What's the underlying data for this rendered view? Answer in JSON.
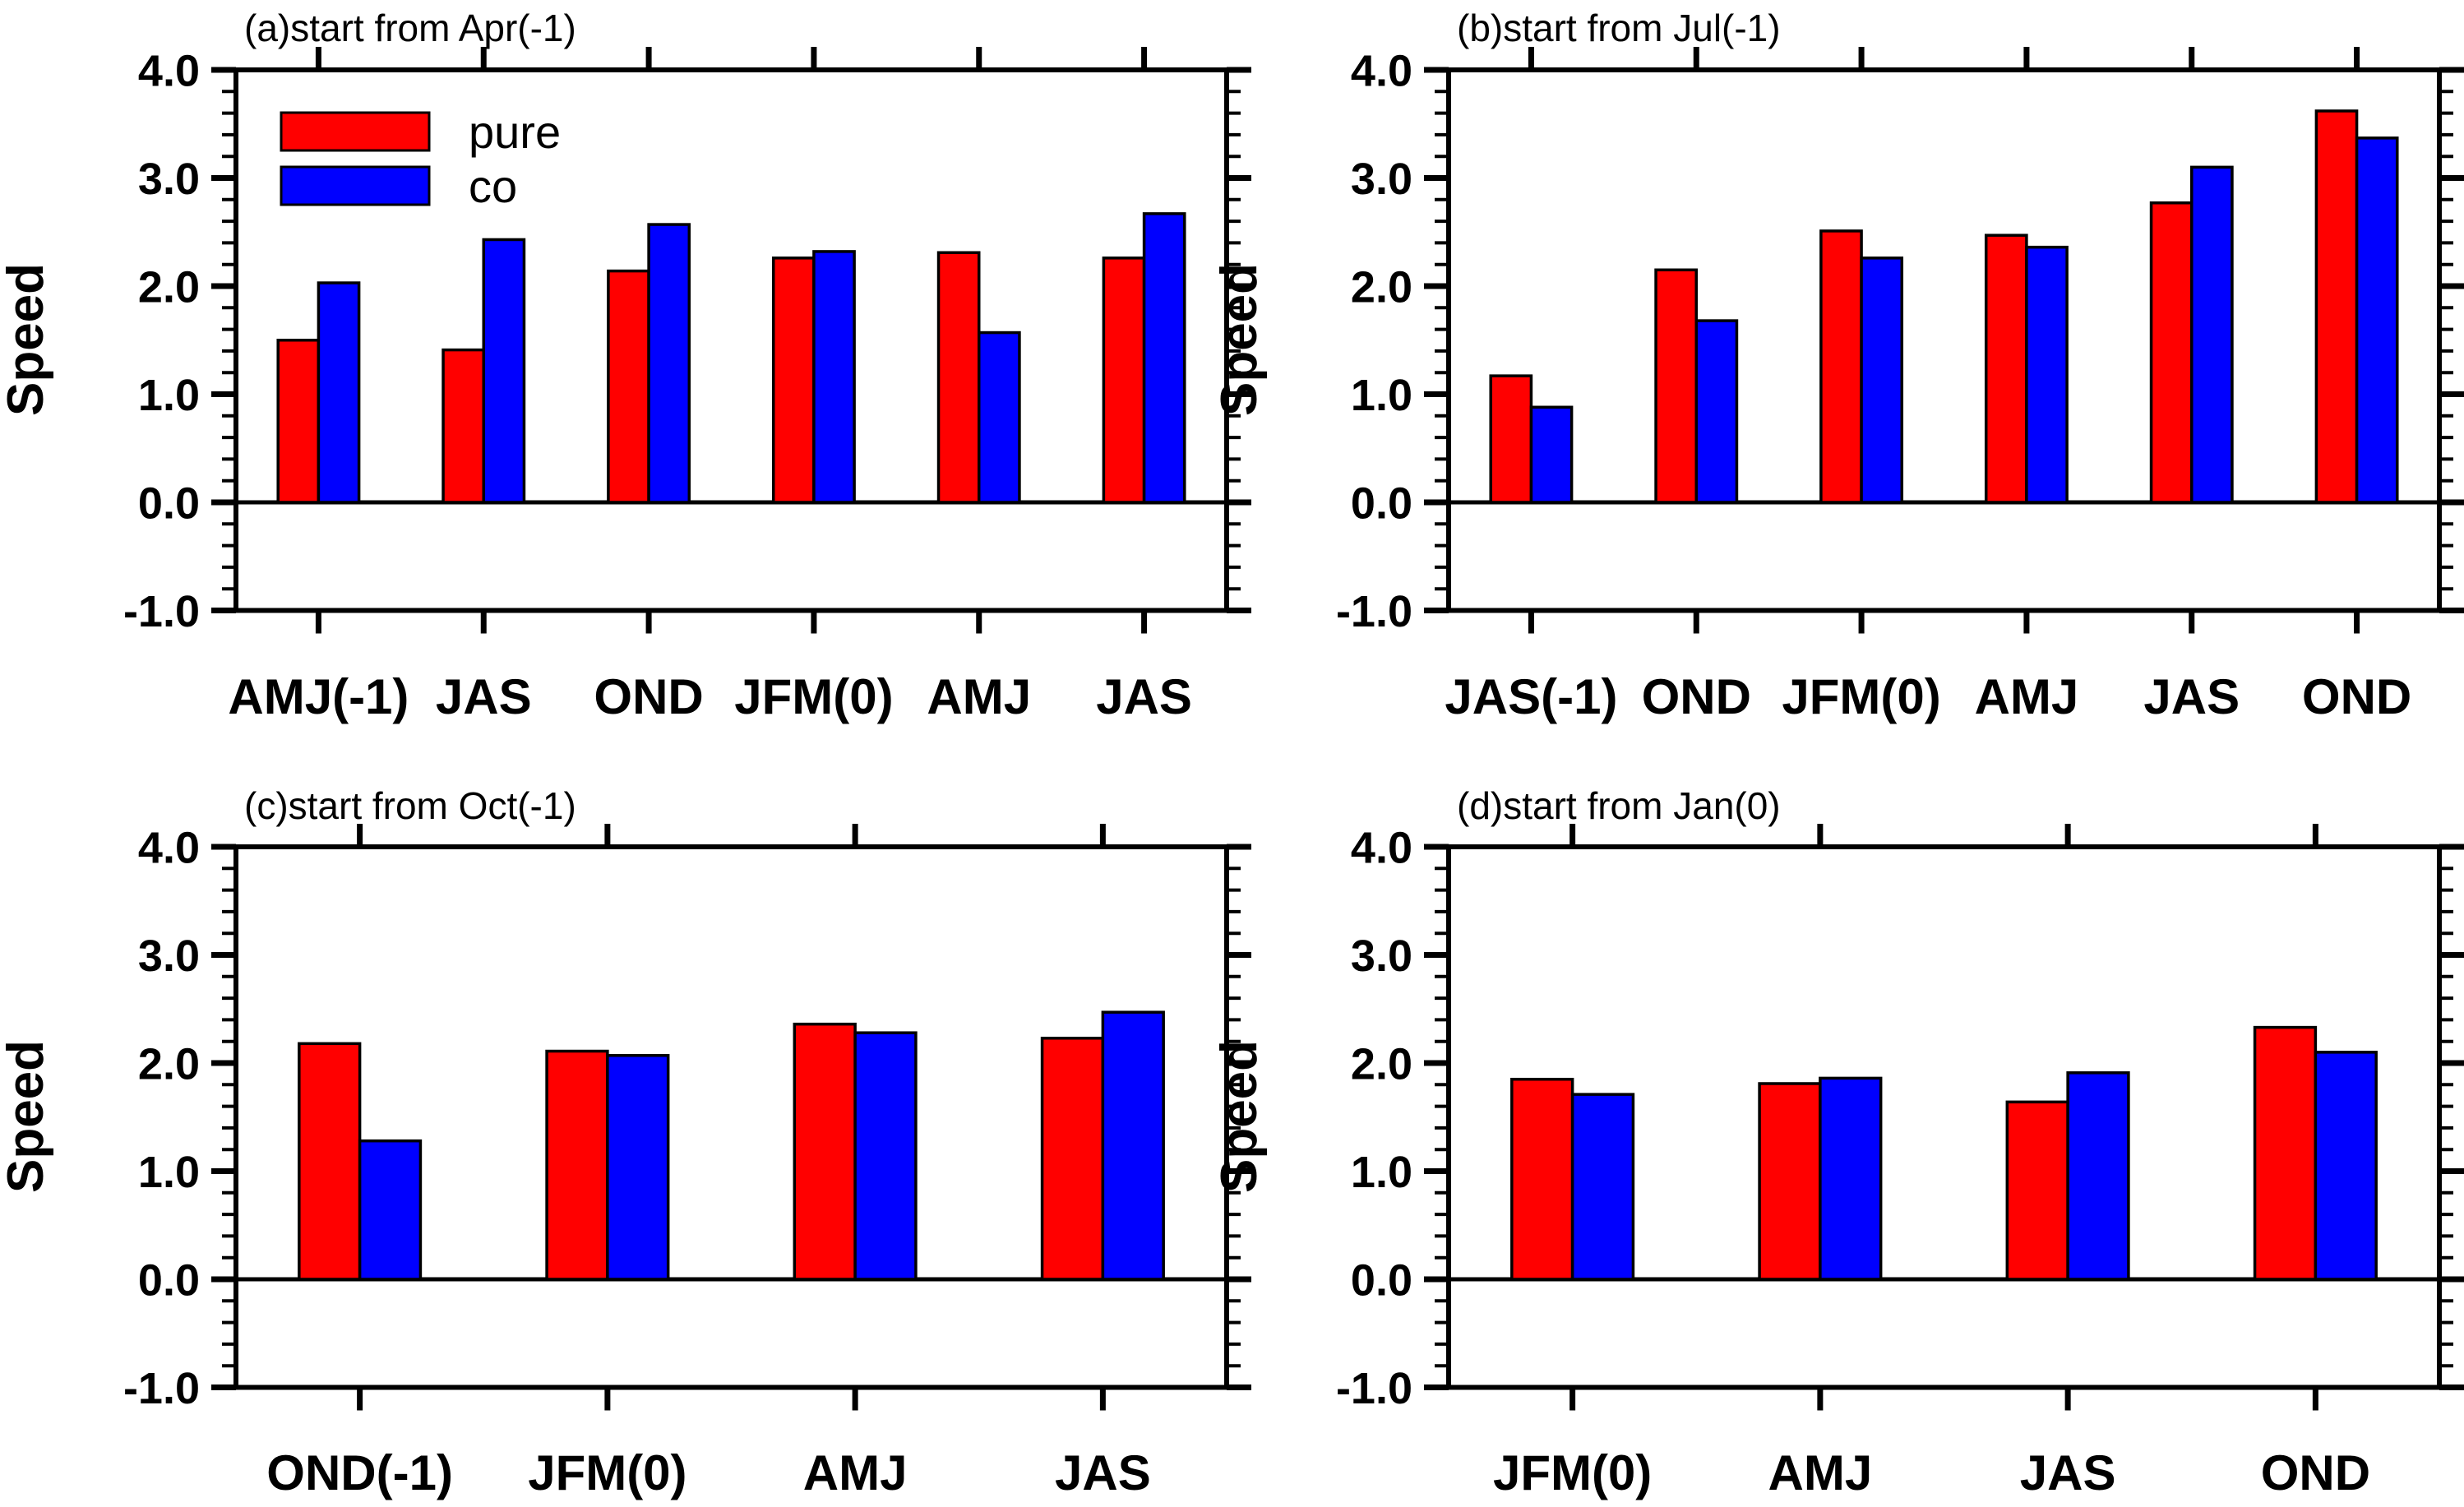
{
  "figure": {
    "background": "#ffffff"
  },
  "axis": {
    "ylabel": "Speed",
    "ylim": [
      -1.0,
      4.0
    ],
    "ymajor": [
      4,
      3,
      2,
      1,
      0,
      -1
    ],
    "ytick_labels": [
      "4.0",
      "3.0",
      "2.0",
      "1.0",
      "0.0",
      "-1.0"
    ],
    "yminor_step": 0.2,
    "grid": "off"
  },
  "legend": {
    "position": "top-left-panel-a",
    "items": [
      {
        "label": "pure",
        "color": "#ff0000"
      },
      {
        "label": "co",
        "color": "#0000ff"
      }
    ]
  },
  "colors": {
    "pure": "#ff0000",
    "co": "#0000ff",
    "outline": "#000000",
    "text": "#000000"
  },
  "chart_data": [
    {
      "type": "bar",
      "id": "a",
      "title": "(a)start from Apr(-1)",
      "ylabel": "Speed",
      "ylim": [
        -1.0,
        4.0
      ],
      "legend_position": "upper-left",
      "show_legend": true,
      "categories": [
        "AMJ(-1)",
        "JAS",
        "OND",
        "JFM(0)",
        "AMJ",
        "JAS"
      ],
      "series": [
        {
          "name": "pure",
          "color": "#ff0000",
          "values": [
            1.5,
            1.41,
            2.14,
            2.26,
            2.31,
            2.26
          ]
        },
        {
          "name": "co",
          "color": "#0000ff",
          "values": [
            2.03,
            2.43,
            2.57,
            2.32,
            1.57,
            2.67
          ]
        }
      ]
    },
    {
      "type": "bar",
      "id": "b",
      "title": "(b)start from Jul(-1)",
      "ylabel": "Speed",
      "ylim": [
        -1.0,
        4.0
      ],
      "show_legend": false,
      "categories": [
        "JAS(-1)",
        "OND",
        "JFM(0)",
        "AMJ",
        "JAS",
        "OND"
      ],
      "series": [
        {
          "name": "pure",
          "color": "#ff0000",
          "values": [
            1.17,
            2.15,
            2.51,
            2.47,
            2.77,
            3.62
          ]
        },
        {
          "name": "co",
          "color": "#0000ff",
          "values": [
            0.88,
            1.68,
            2.26,
            2.36,
            3.1,
            3.37
          ]
        }
      ]
    },
    {
      "type": "bar",
      "id": "c",
      "title": "(c)start from Oct(-1)",
      "ylabel": "Speed",
      "ylim": [
        -1.0,
        4.0
      ],
      "show_legend": false,
      "categories": [
        "OND(-1)",
        "JFM(0)",
        "AMJ",
        "JAS"
      ],
      "series": [
        {
          "name": "pure",
          "color": "#ff0000",
          "values": [
            2.18,
            2.11,
            2.36,
            2.23
          ]
        },
        {
          "name": "co",
          "color": "#0000ff",
          "values": [
            1.28,
            2.07,
            2.28,
            2.47
          ]
        }
      ]
    },
    {
      "type": "bar",
      "id": "d",
      "title": "(d)start from Jan(0)",
      "ylabel": "Speed",
      "ylim": [
        -1.0,
        4.0
      ],
      "show_legend": false,
      "categories": [
        "JFM(0)",
        "AMJ",
        "JAS",
        "OND"
      ],
      "series": [
        {
          "name": "pure",
          "color": "#ff0000",
          "values": [
            1.85,
            1.81,
            1.64,
            2.33
          ]
        },
        {
          "name": "co",
          "color": "#0000ff",
          "values": [
            1.71,
            1.86,
            1.91,
            2.1
          ]
        }
      ]
    }
  ]
}
